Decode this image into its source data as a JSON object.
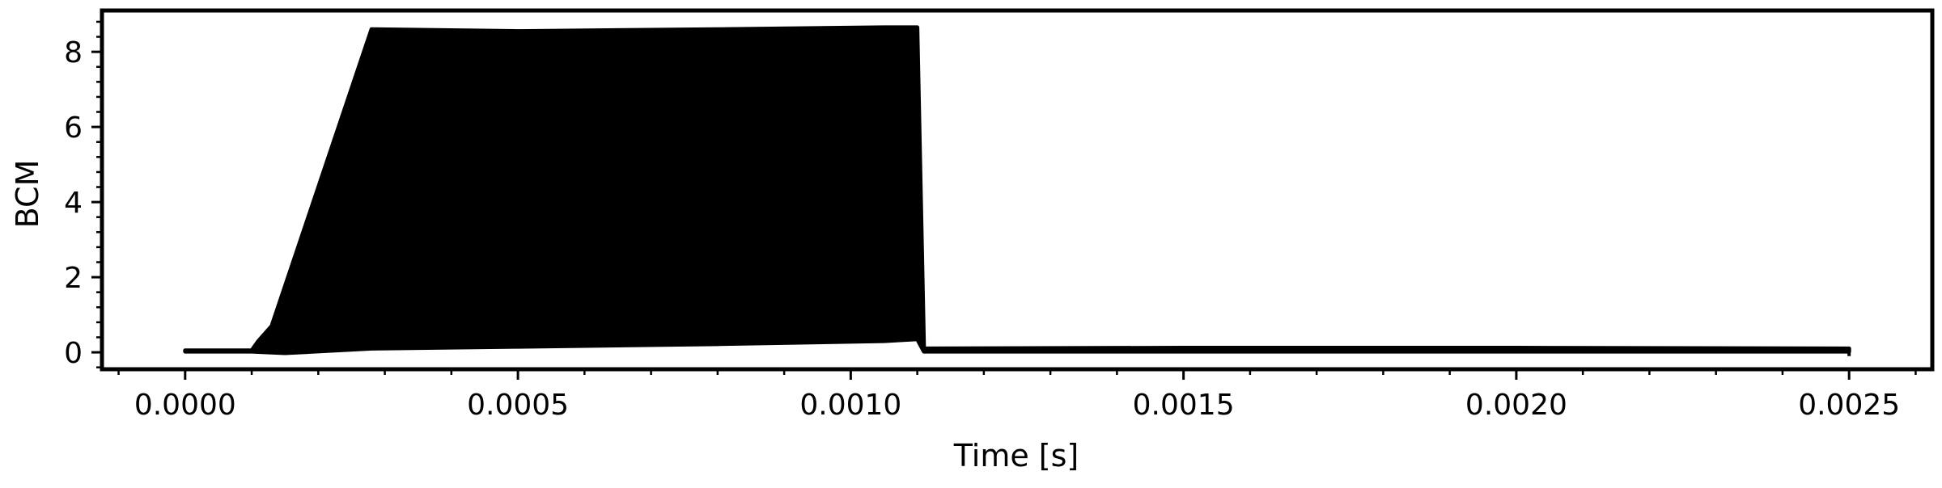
{
  "chart_data": {
    "type": "area",
    "title": "",
    "xlabel": "Time [s]",
    "ylabel": "BCM",
    "xlim": [
      -0.000125,
      0.002625
    ],
    "ylim": [
      -0.45,
      9.1
    ],
    "x_ticks": [
      0.0,
      0.0005,
      0.001,
      0.0015,
      0.002,
      0.0025
    ],
    "x_tick_labels": [
      "0.0000",
      "0.0005",
      "0.0010",
      "0.0015",
      "0.0020",
      "0.0025"
    ],
    "y_ticks": [
      0,
      2,
      4,
      6,
      8
    ],
    "y_tick_labels": [
      "0",
      "2",
      "4",
      "6",
      "8"
    ],
    "grid": false,
    "legend": "none",
    "line_color": "#000000",
    "series": [
      {
        "style": "oscillating-envelope",
        "upper_envelope": {
          "x": [
            0.0,
            0.0001,
            0.00011,
            0.00013,
            0.00028,
            0.0005,
            0.0008,
            0.00105,
            0.0011,
            0.00111,
            0.0015,
            0.002,
            0.0025
          ],
          "y": [
            0.05,
            0.05,
            0.3,
            0.7,
            8.6,
            8.55,
            8.6,
            8.65,
            8.65,
            0.1,
            0.12,
            0.12,
            0.1
          ]
        },
        "lower_envelope": {
          "x": [
            0.0,
            0.0001,
            0.00015,
            0.00028,
            0.0005,
            0.0008,
            0.00105,
            0.0011,
            0.00111,
            0.0015,
            0.002,
            0.0025
          ],
          "y": [
            0.02,
            0.02,
            -0.02,
            0.1,
            0.15,
            0.22,
            0.3,
            0.35,
            0.02,
            0.02,
            0.02,
            0.02
          ]
        }
      }
    ]
  }
}
